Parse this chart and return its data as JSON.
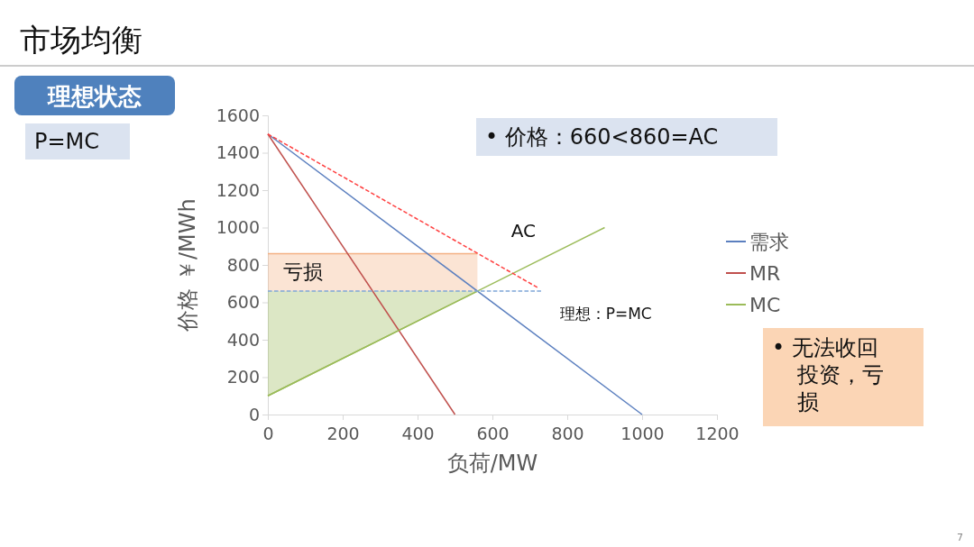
{
  "chart_data": {
    "type": "line",
    "title": "市场均衡",
    "subtitle": "理想状态",
    "xlabel": "负荷/MW",
    "ylabel": "价格 ￥/MWh",
    "xlim": [
      0,
      1200
    ],
    "xticks": [
      0,
      200,
      400,
      600,
      800,
      1000,
      1200
    ],
    "ylim": [
      0,
      1600
    ],
    "yticks": [
      0,
      200,
      400,
      600,
      800,
      1000,
      1200,
      1400,
      1600
    ],
    "grid": false,
    "legend": "right",
    "marker": "none",
    "series": [
      {
        "type": "line",
        "color": "#f4b183",
        "x": [
          0,
          560
        ],
        "values": [
          860,
          860
        ],
        "lower": [
          660,
          660
        ],
        "upper": [
          860,
          860
        ]
      },
      {
        "type": "line",
        "color": "#9bbb59",
        "x": [
          0,
          560
        ],
        "values": [
          100,
          660
        ],
        "lower": [
          100,
          660
        ],
        "upper": [
          660,
          660
        ]
      },
      {
        "name": "需求",
        "color": "#5b7fbf",
        "x": [
          0,
          1000
        ],
        "values": [
          1500,
          0
        ]
      },
      {
        "name": "MR",
        "color": "#c0504d",
        "x": [
          0,
          500
        ],
        "values": [
          1500,
          0
        ]
      },
      {
        "name": "MC",
        "color": "#9bbb59",
        "x": [
          0,
          900
        ],
        "values": [
          100,
          1000
        ]
      },
      {
        "color": "#ff4040",
        "line_style": "dashed",
        "x": [
          0,
          720
        ],
        "values": [
          1500,
          680
        ]
      },
      {
        "color": "#7fa6d8",
        "line_style": "dashed",
        "x": [
          0,
          730
        ],
        "values": [
          660,
          660
        ]
      }
    ],
    "annotations": [
      "P=MC",
      "• 价格：660<860=AC",
      "• 无法收回投资，亏损",
      "7",
      "AC",
      "亏损",
      "理想：P=MC"
    ]
  }
}
